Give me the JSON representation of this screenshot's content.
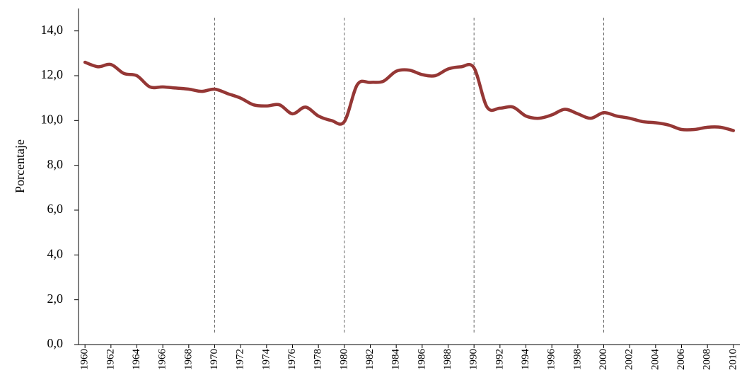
{
  "chart_data": {
    "type": "line",
    "y_label": "Porcentaje",
    "x": [
      1960,
      1961,
      1962,
      1963,
      1964,
      1965,
      1966,
      1967,
      1968,
      1969,
      1970,
      1971,
      1972,
      1973,
      1974,
      1975,
      1976,
      1977,
      1978,
      1979,
      1980,
      1981,
      1982,
      1983,
      1984,
      1985,
      1986,
      1987,
      1988,
      1989,
      1990,
      1991,
      1992,
      1993,
      1994,
      1995,
      1996,
      1997,
      1998,
      1999,
      2000,
      2001,
      2002,
      2003,
      2004,
      2005,
      2006,
      2007,
      2008,
      2009,
      2010
    ],
    "series": [
      {
        "color": "#953735",
        "values": [
          12.6,
          12.4,
          12.5,
          12.1,
          12.0,
          11.5,
          11.5,
          11.45,
          11.4,
          11.3,
          11.4,
          11.2,
          11.0,
          10.7,
          10.65,
          10.7,
          10.3,
          10.6,
          10.2,
          10.0,
          9.95,
          11.6,
          11.7,
          11.75,
          12.2,
          12.25,
          12.05,
          12.0,
          12.3,
          12.4,
          12.35,
          10.6,
          10.55,
          10.6,
          10.2,
          10.1,
          10.25,
          10.5,
          10.3,
          10.1,
          10.35,
          10.2,
          10.1,
          9.95,
          9.9,
          9.8,
          9.6,
          9.6,
          9.7,
          9.7,
          9.55
        ]
      }
    ],
    "xlim": [
      1959.5,
      2010.5
    ],
    "xticks": [
      1960,
      1962,
      1964,
      1966,
      1968,
      1970,
      1972,
      1974,
      1976,
      1978,
      1980,
      1982,
      1984,
      1986,
      1988,
      1990,
      1992,
      1994,
      1996,
      1998,
      2000,
      2002,
      2004,
      2006,
      2008,
      2010
    ],
    "ylim": [
      0,
      15
    ],
    "yticks": [
      {
        "value": 0,
        "label": "0,0"
      },
      {
        "value": 2,
        "label": "2,0"
      },
      {
        "value": 4,
        "label": "4,0"
      },
      {
        "value": 6,
        "label": "6,0"
      },
      {
        "value": 8,
        "label": "8,0"
      },
      {
        "value": 10,
        "label": "10,0"
      },
      {
        "value": 12,
        "label": "12,0"
      },
      {
        "value": 14,
        "label": "14,0"
      }
    ],
    "reference_lines": [
      1970,
      1980,
      1990,
      2000
    ]
  }
}
